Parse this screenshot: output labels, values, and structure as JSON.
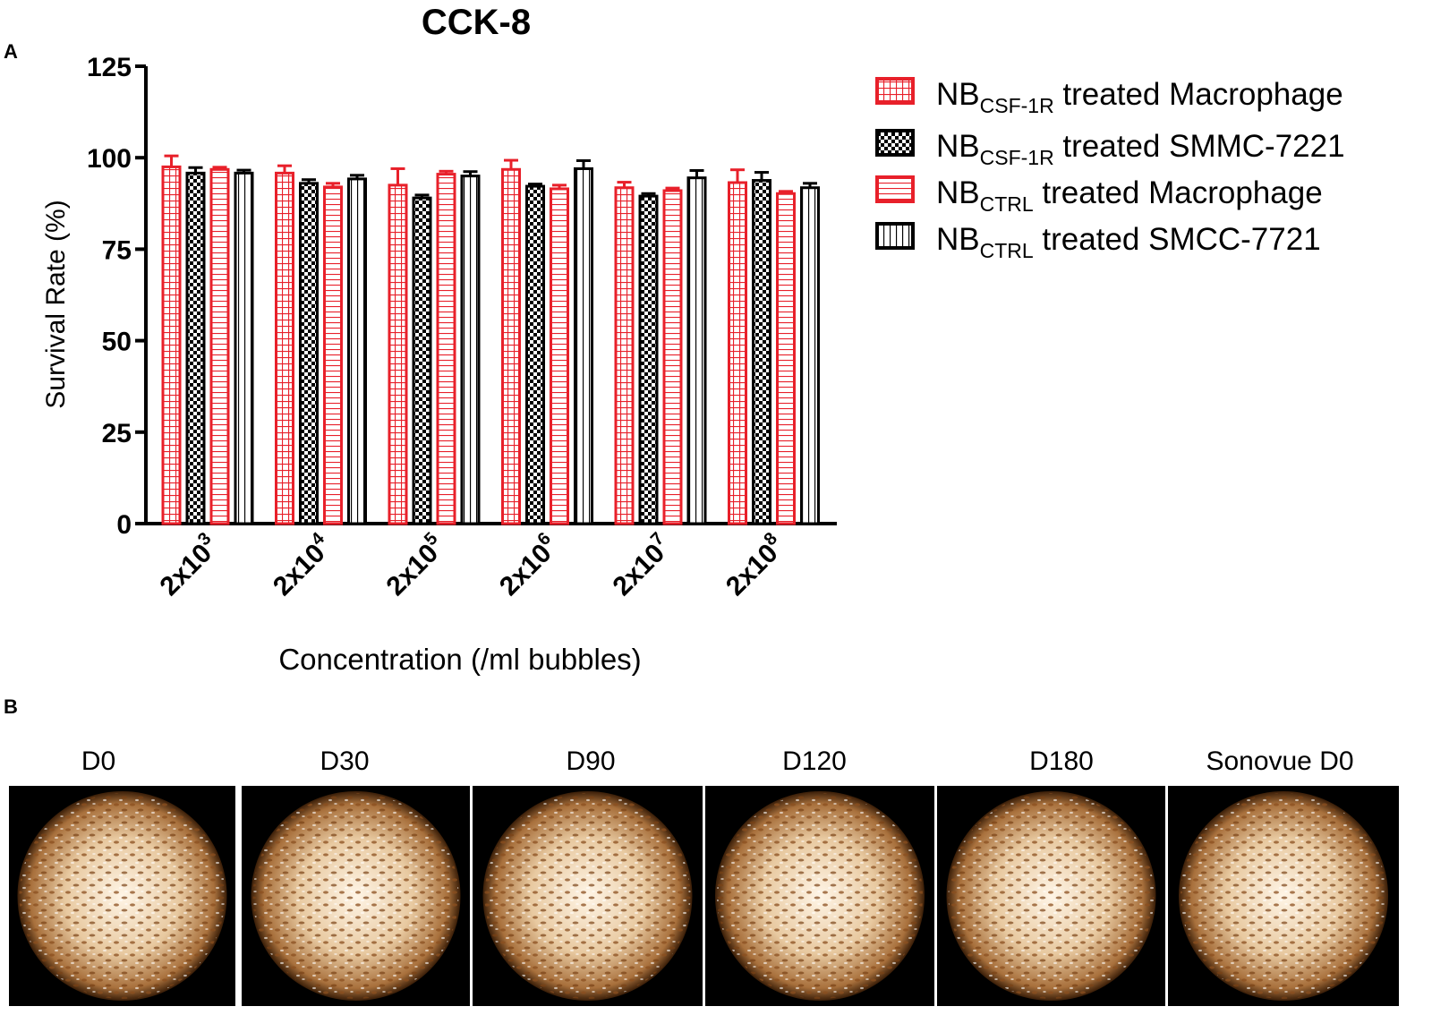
{
  "panel_a_label": "A",
  "panel_b_label": "B",
  "chart_data": {
    "type": "bar",
    "title": "CCK-8",
    "xlabel": "Concentration (/ml bubbles)",
    "ylabel": "Survival Rate (%)",
    "ylim": [
      0,
      125
    ],
    "yticks": [
      0,
      25,
      50,
      75,
      100,
      125
    ],
    "grid": false,
    "legend_position": "right",
    "categories": [
      {
        "base": "2x10",
        "exp": "3"
      },
      {
        "base": "2x10",
        "exp": "4"
      },
      {
        "base": "2x10",
        "exp": "5"
      },
      {
        "base": "2x10",
        "exp": "6"
      },
      {
        "base": "2x10",
        "exp": "7"
      },
      {
        "base": "2x10",
        "exp": "8"
      }
    ],
    "series": [
      {
        "name": "NB CSF-1R treated Macrophage",
        "prefix": "NB",
        "sub": "CSF-1R",
        "suffix": " treated Macrophage",
        "color": "#e8202a",
        "pattern": "grid",
        "values": [
          97.5,
          95.8,
          92.5,
          96.8,
          91.8,
          93.2
        ],
        "errors": [
          3.0,
          2.0,
          4.5,
          2.5,
          1.5,
          3.5
        ]
      },
      {
        "name": "NB CSF-1R treated SMMC-7221",
        "prefix": "NB",
        "sub": "CSF-1R",
        "suffix": " treated SMMC-7221",
        "color": "#000000",
        "pattern": "checker",
        "values": [
          95.8,
          93.0,
          89.0,
          92.2,
          89.5,
          93.8
        ],
        "errors": [
          1.5,
          1.0,
          0.8,
          0.6,
          0.7,
          2.2
        ]
      },
      {
        "name": "NB CTRL treated Macrophage",
        "prefix": "NB",
        "sub": "CTRL",
        "suffix": " treated Macrophage",
        "color": "#e8202a",
        "pattern": "hlines",
        "values": [
          96.8,
          92.0,
          95.5,
          91.5,
          91.0,
          90.2
        ],
        "errors": [
          0.6,
          1.0,
          0.8,
          1.0,
          0.7,
          0.6
        ]
      },
      {
        "name": "NB CTRL treated SMCC-7721",
        "prefix": "NB",
        "sub": "CTRL",
        "suffix": " treated SMCC-7721",
        "color": "#000000",
        "pattern": "vlines",
        "values": [
          95.8,
          94.2,
          95.0,
          97.0,
          94.5,
          91.8
        ],
        "errors": [
          0.8,
          1.0,
          1.2,
          2.2,
          2.0,
          1.2
        ]
      }
    ]
  },
  "ultrasound_images": [
    {
      "label": "D0"
    },
    {
      "label": "D30"
    },
    {
      "label": "D90"
    },
    {
      "label": "D120"
    },
    {
      "label": "D180"
    },
    {
      "label": "Sonovue D0"
    }
  ]
}
